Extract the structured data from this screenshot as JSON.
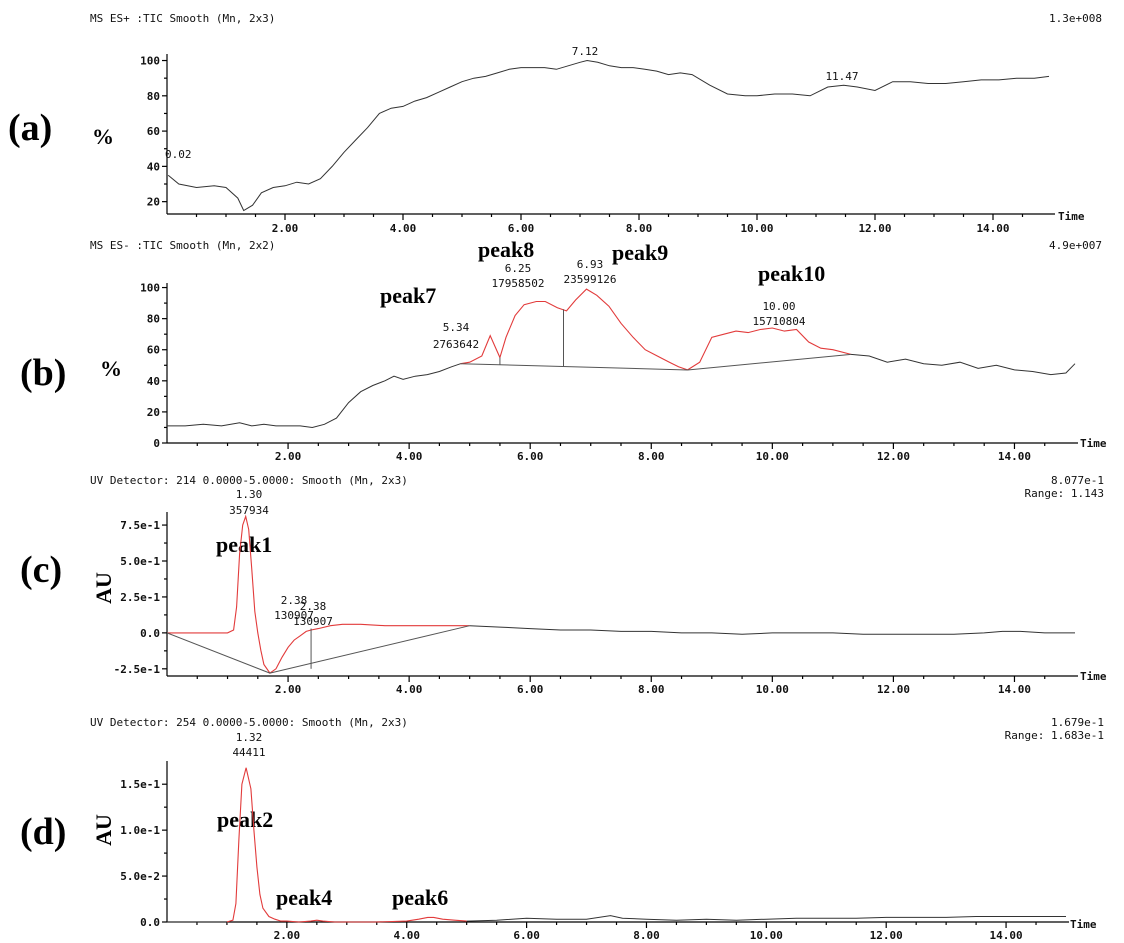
{
  "chart_data": [
    {
      "panel": "(a)",
      "type": "line",
      "header": "MS ES+ :TIC Smooth (Mn, 2x3)",
      "scale": "1.3e+008",
      "ylabel": "%",
      "xlabel": "Time",
      "xlim": [
        0,
        15
      ],
      "ylim": [
        13,
        102
      ],
      "xticks": [
        2,
        4,
        6,
        8,
        10,
        12,
        14
      ],
      "xtick_labels": [
        "2.00",
        "4.00",
        "6.00",
        "8.00",
        "10.00",
        "12.00",
        "14.00"
      ],
      "yticks": [
        20,
        40,
        60,
        80,
        100
      ],
      "ytick_labels": [
        "20",
        "40",
        "60",
        "80",
        "100"
      ],
      "series": [
        {
          "x": [
            0.02,
            0.2,
            0.5,
            0.8,
            1.0,
            1.2,
            1.3,
            1.45,
            1.6,
            1.8,
            2.0,
            2.2,
            2.4,
            2.6,
            2.8,
            3.0,
            3.2,
            3.4,
            3.6,
            3.8,
            4.0,
            4.2,
            4.4,
            4.6,
            4.8,
            5.0,
            5.2,
            5.4,
            5.6,
            5.8,
            6.0,
            6.2,
            6.4,
            6.6,
            6.8,
            7.0,
            7.12,
            7.3,
            7.5,
            7.7,
            7.9,
            8.1,
            8.3,
            8.5,
            8.7,
            8.9,
            9.2,
            9.5,
            9.8,
            10.0,
            10.3,
            10.6,
            10.9,
            11.2,
            11.47,
            11.7,
            12.0,
            12.3,
            12.6,
            12.9,
            13.2,
            13.5,
            13.8,
            14.1,
            14.4,
            14.7,
            14.95
          ],
          "y": [
            35,
            30,
            28,
            29,
            28,
            22,
            15,
            18,
            25,
            28,
            29,
            31,
            30,
            33,
            40,
            48,
            55,
            62,
            70,
            73,
            74,
            77,
            79,
            82,
            85,
            88,
            90,
            91,
            93,
            95,
            96,
            96,
            96,
            95,
            97,
            99,
            100,
            99,
            97,
            96,
            96,
            95,
            94,
            92,
            93,
            92,
            86,
            81,
            80,
            80,
            81,
            81,
            80,
            85,
            86,
            85,
            83,
            88,
            88,
            87,
            87,
            88,
            89,
            89,
            90,
            90,
            91
          ]
        }
      ],
      "annotations": [
        {
          "x": 0.02,
          "y": 35,
          "text": "0.02"
        },
        {
          "x": 7.12,
          "y": 100,
          "text": "7.12"
        },
        {
          "x": 11.47,
          "y": 86,
          "text": "11.47"
        }
      ]
    },
    {
      "panel": "(b)",
      "type": "line",
      "header": "MS ES- :TIC Smooth (Mn, 2x2)",
      "scale": "4.9e+007",
      "ylabel": "%",
      "xlabel": "Time",
      "xlim": [
        0,
        15
      ],
      "ylim": [
        0,
        101
      ],
      "xticks": [
        2,
        4,
        6,
        8,
        10,
        12,
        14
      ],
      "xtick_labels": [
        "2.00",
        "4.00",
        "6.00",
        "8.00",
        "10.00",
        "12.00",
        "14.00"
      ],
      "yticks": [
        0,
        20,
        40,
        60,
        80,
        100
      ],
      "ytick_labels": [
        "0",
        "20",
        "40",
        "60",
        "80",
        "100"
      ],
      "series": [
        {
          "color": "#333333",
          "x": [
            0.0,
            0.3,
            0.6,
            0.9,
            1.2,
            1.4,
            1.6,
            1.8,
            2.0,
            2.2,
            2.4,
            2.6,
            2.8,
            3.0,
            3.2,
            3.4,
            3.6,
            3.75,
            3.9,
            4.1,
            4.3,
            4.5,
            4.7,
            4.85
          ],
          "y": [
            11,
            11,
            12,
            11,
            13,
            11,
            12,
            11,
            11,
            11,
            10,
            12,
            16,
            26,
            33,
            37,
            40,
            43,
            41,
            43,
            44,
            46,
            49,
            51
          ]
        },
        {
          "color": "#e23b3b",
          "x": [
            4.85,
            5.0,
            5.2,
            5.34,
            5.5,
            5.6,
            5.75,
            5.9,
            6.1,
            6.25,
            6.45,
            6.6,
            6.75,
            6.93,
            7.1,
            7.3,
            7.5,
            7.7,
            7.9,
            8.1,
            8.3,
            8.45,
            8.6,
            8.8,
            9.0,
            9.2,
            9.4,
            9.6,
            9.8,
            10.0,
            10.2,
            10.4,
            10.6,
            10.8,
            11.0,
            11.3
          ],
          "y": [
            51,
            52,
            56,
            69,
            55,
            68,
            82,
            89,
            91,
            91,
            87,
            85,
            92,
            99,
            95,
            88,
            77,
            68,
            60,
            56,
            52,
            49,
            47,
            52,
            68,
            70,
            72,
            71,
            73,
            74,
            72,
            73,
            65,
            61,
            60,
            57
          ]
        },
        {
          "color": "#333333",
          "x": [
            11.3,
            11.6,
            11.9,
            12.2,
            12.5,
            12.8,
            13.1,
            13.4,
            13.7,
            14.0,
            14.3,
            14.6,
            14.85,
            15.0
          ],
          "y": [
            57,
            56,
            52,
            54,
            51,
            50,
            52,
            48,
            50,
            47,
            46,
            44,
            45,
            51
          ]
        }
      ],
      "annotations": [
        {
          "x": 5.34,
          "y": 69,
          "text": "5.34",
          "area": "2763642"
        },
        {
          "x": 6.25,
          "y": 91,
          "text": "6.25",
          "area": "17958502"
        },
        {
          "x": 6.93,
          "y": 99,
          "text": "6.93",
          "area": "23599126"
        },
        {
          "x": 10.0,
          "y": 74,
          "text": "10.00",
          "area": "15710804"
        }
      ],
      "peak_labels": [
        "peak7",
        "peak8",
        "peak9",
        "peak10"
      ]
    },
    {
      "panel": "(c)",
      "type": "line",
      "header": "UV Detector: 214 0.0000-5.0000: Smooth (Mn, 2x3)",
      "scale": "8.077e-1",
      "range_text": "Range: 1.143",
      "ylabel": "AU",
      "xlabel": "Time",
      "xlim": [
        0,
        15
      ],
      "ylim": [
        -0.3,
        0.82
      ],
      "xticks": [
        2,
        4,
        6,
        8,
        10,
        12,
        14
      ],
      "xtick_labels": [
        "2.00",
        "4.00",
        "6.00",
        "8.00",
        "10.00",
        "12.00",
        "14.00"
      ],
      "yticks": [
        -0.25,
        0.0,
        0.25,
        0.5,
        0.75
      ],
      "ytick_labels": [
        "-2.5e-1",
        "0.0",
        "2.5e-1",
        "5.0e-1",
        "7.5e-1"
      ],
      "series": [
        {
          "color": "#e23b3b",
          "x": [
            0.0,
            0.4,
            0.8,
            1.0,
            1.1,
            1.15,
            1.2,
            1.25,
            1.3,
            1.35,
            1.4,
            1.45,
            1.5,
            1.55,
            1.6,
            1.7,
            1.8,
            1.9,
            2.0,
            2.1,
            2.2,
            2.3,
            2.38,
            2.5,
            2.7,
            2.9,
            3.2,
            3.6,
            4.0,
            4.5,
            5.0
          ],
          "y": [
            0.0,
            0.0,
            0.0,
            0.0,
            0.02,
            0.18,
            0.55,
            0.75,
            0.81,
            0.72,
            0.45,
            0.15,
            0.0,
            -0.12,
            -0.22,
            -0.28,
            -0.25,
            -0.17,
            -0.1,
            -0.05,
            -0.02,
            0.01,
            0.02,
            0.03,
            0.05,
            0.06,
            0.06,
            0.05,
            0.05,
            0.05,
            0.05
          ]
        },
        {
          "color": "#333333",
          "x": [
            5.0,
            5.5,
            6.0,
            6.5,
            7.0,
            7.5,
            8.0,
            8.5,
            9.0,
            9.5,
            10.0,
            10.5,
            11.0,
            11.5,
            12.0,
            12.5,
            13.0,
            13.5,
            13.8,
            14.1,
            14.5,
            15.0
          ],
          "y": [
            0.05,
            0.04,
            0.03,
            0.02,
            0.02,
            0.01,
            0.01,
            0.0,
            0.0,
            -0.01,
            0.0,
            0.0,
            0.0,
            -0.01,
            -0.01,
            -0.01,
            -0.01,
            0.0,
            0.01,
            0.01,
            0.0,
            0.0
          ]
        }
      ],
      "annotations": [
        {
          "x": 1.3,
          "y": 0.81,
          "text": "1.30",
          "area": "357934"
        },
        {
          "x": 2.38,
          "y": 0.02,
          "text": "2.38",
          "area": "130907"
        },
        {
          "x": 2.38,
          "y": 0.02,
          "text": "2.38",
          "area": "130907"
        }
      ],
      "peak_labels": [
        "peak1"
      ]
    },
    {
      "panel": "(d)",
      "type": "line",
      "header": "UV Detector: 254 0.0000-5.0000: Smooth (Mn, 2x3)",
      "scale": "1.679e-1",
      "range_text": "Range: 1.683e-1",
      "ylabel": "AU",
      "xlabel": "Time",
      "xlim": [
        0,
        15
      ],
      "ylim": [
        0,
        0.172
      ],
      "xticks": [
        2,
        4,
        6,
        8,
        10,
        12,
        14
      ],
      "xtick_labels": [
        "2.00",
        "4.00",
        "6.00",
        "8.00",
        "10.00",
        "12.00",
        "14.00"
      ],
      "yticks": [
        0.0,
        0.05,
        0.1,
        0.15
      ],
      "ytick_labels": [
        "0.0",
        "5.0e-2",
        "1.0e-1",
        "1.5e-1"
      ],
      "series": [
        {
          "color": "#e23b3b",
          "x": [
            1.0,
            1.1,
            1.15,
            1.2,
            1.25,
            1.32,
            1.4,
            1.45,
            1.5,
            1.55,
            1.6,
            1.7,
            1.8,
            1.9,
            2.0,
            2.2,
            2.4,
            2.5,
            2.6,
            2.8,
            3.0,
            3.5,
            4.0,
            4.2,
            4.35,
            4.45,
            4.6,
            4.8,
            5.0
          ],
          "y": [
            0.0,
            0.002,
            0.02,
            0.09,
            0.15,
            0.168,
            0.145,
            0.1,
            0.06,
            0.03,
            0.015,
            0.006,
            0.003,
            0.001,
            0.001,
            0.0,
            0.001,
            0.002,
            0.001,
            0.0,
            0.0,
            0.0,
            0.001,
            0.003,
            0.005,
            0.005,
            0.003,
            0.002,
            0.001
          ]
        },
        {
          "color": "#333333",
          "x": [
            0.0,
            0.5,
            1.0
          ],
          "y": [
            0.0,
            0.0,
            0.0
          ]
        },
        {
          "color": "#333333",
          "x": [
            5.0,
            5.5,
            6.0,
            6.5,
            7.0,
            7.4,
            7.6,
            8.0,
            8.5,
            9.0,
            9.5,
            10.0,
            10.5,
            11.0,
            11.5,
            12.0,
            12.5,
            13.0,
            13.5,
            14.0,
            14.5,
            15.0
          ],
          "y": [
            0.001,
            0.002,
            0.004,
            0.003,
            0.003,
            0.007,
            0.004,
            0.003,
            0.002,
            0.003,
            0.002,
            0.003,
            0.004,
            0.004,
            0.004,
            0.005,
            0.005,
            0.005,
            0.006,
            0.006,
            0.006,
            0.006
          ]
        }
      ],
      "annotations": [
        {
          "x": 1.32,
          "y": 0.168,
          "text": "1.32",
          "area": "44411"
        }
      ],
      "peak_labels": [
        "peak2",
        "peak4",
        "peak6"
      ]
    }
  ]
}
